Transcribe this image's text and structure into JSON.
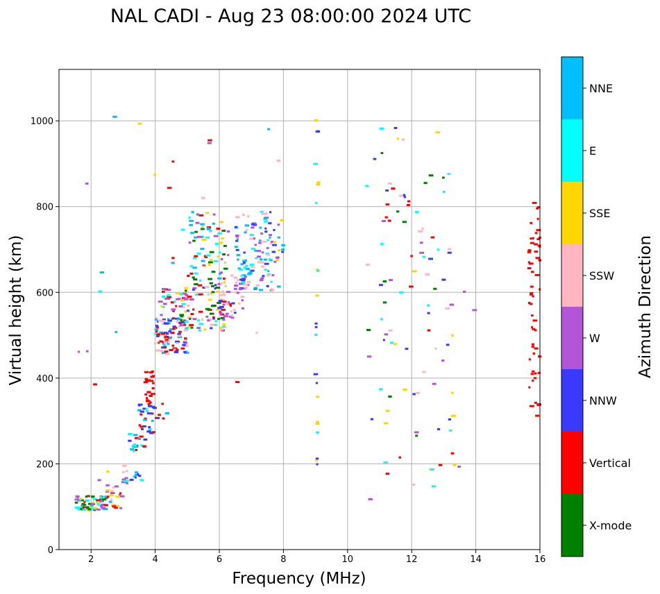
{
  "chart_data": {
    "type": "scatter",
    "title": "NAL CADI - Aug 23 08:00:00 2024 UTC",
    "xlabel": "Frequency (MHz)",
    "ylabel": "Virtual height (km)",
    "xlim": [
      1,
      16
    ],
    "ylim": [
      0,
      1120
    ],
    "xticks": [
      "2",
      "4",
      "6",
      "8",
      "10",
      "12",
      "14",
      "16"
    ],
    "yticks": [
      "0",
      "200",
      "400",
      "600",
      "800",
      "1000"
    ],
    "grid": true,
    "colorbar": {
      "label": "Azimuth Direction",
      "categories": [
        {
          "name": "X-mode",
          "color": "#008000"
        },
        {
          "name": "Vertical",
          "color": "#ff0000"
        },
        {
          "name": "NNW",
          "color": "#3a3aff"
        },
        {
          "name": "W",
          "color": "#b455d8"
        },
        {
          "name": "SSW",
          "color": "#ffb6c1"
        },
        {
          "name": "SSE",
          "color": "#ffd700"
        },
        {
          "name": "E",
          "color": "#00ffff"
        },
        {
          "name": "NNE",
          "color": "#00bfff"
        }
      ]
    },
    "clusters": [
      {
        "x": [
          1.5,
          2.5
        ],
        "y": [
          90,
          125
        ],
        "n": 70,
        "colors": [
          "Vertical",
          "E",
          "SSE",
          "W",
          "NNE",
          "X-mode"
        ]
      },
      {
        "x": [
          2.5,
          3.0
        ],
        "y": [
          95,
          150
        ],
        "n": 20,
        "colors": [
          "SSW",
          "W",
          "Vertical",
          "SSE"
        ]
      },
      {
        "x": [
          3.0,
          3.2
        ],
        "y": [
          140,
          215
        ],
        "n": 10,
        "colors": [
          "SSE",
          "E",
          "W",
          "SSW"
        ]
      },
      {
        "x": [
          3.2,
          3.6
        ],
        "y": [
          160,
          180
        ],
        "n": 8,
        "colors": [
          "NNW",
          "E",
          "NNE"
        ]
      },
      {
        "x": [
          3.2,
          3.7
        ],
        "y": [
          230,
          270
        ],
        "n": 20,
        "colors": [
          "NNE",
          "NNW",
          "Vertical",
          "E"
        ]
      },
      {
        "x": [
          3.5,
          4.0
        ],
        "y": [
          270,
          340
        ],
        "n": 28,
        "colors": [
          "Vertical",
          "NNE",
          "NNW",
          "E"
        ]
      },
      {
        "x": [
          3.7,
          3.95
        ],
        "y": [
          340,
          420
        ],
        "n": 22,
        "colors": [
          "Vertical"
        ]
      },
      {
        "x": [
          3.9,
          4.4
        ],
        "y": [
          300,
          345
        ],
        "n": 8,
        "colors": [
          "NNW",
          "NNE",
          "Vertical"
        ]
      },
      {
        "x": [
          4.0,
          5.0
        ],
        "y": [
          455,
          540
        ],
        "n": 95,
        "colors": [
          "Vertical",
          "NNW",
          "NNE",
          "SSW"
        ]
      },
      {
        "x": [
          4.0,
          5.0
        ],
        "y": [
          540,
          610
        ],
        "n": 30,
        "colors": [
          "Vertical",
          "SSE",
          "E",
          "W"
        ]
      },
      {
        "x": [
          4.8,
          6.2
        ],
        "y": [
          510,
          620
        ],
        "n": 85,
        "colors": [
          "X-mode",
          "Vertical",
          "W",
          "E",
          "NNW",
          "SSW",
          "SSE"
        ]
      },
      {
        "x": [
          5.0,
          6.3
        ],
        "y": [
          620,
          790
        ],
        "n": 75,
        "colors": [
          "X-mode",
          "Vertical",
          "E",
          "NNE",
          "SSE",
          "W"
        ]
      },
      {
        "x": [
          6.0,
          6.8
        ],
        "y": [
          540,
          650
        ],
        "n": 45,
        "colors": [
          "W",
          "SSW",
          "Vertical",
          "NNW"
        ]
      },
      {
        "x": [
          6.5,
          7.7
        ],
        "y": [
          600,
          790
        ],
        "n": 110,
        "colors": [
          "W",
          "NNW",
          "NNE",
          "E",
          "SSW"
        ]
      },
      {
        "x": [
          7.7,
          8.0
        ],
        "y": [
          650,
          790
        ],
        "n": 14,
        "colors": [
          "NNW",
          "NNE",
          "W",
          "SSE"
        ]
      },
      {
        "x": [
          9.0,
          9.1
        ],
        "y": [
          150,
          1020
        ],
        "n": 22,
        "colors": [
          "SSE",
          "E",
          "NNW"
        ]
      },
      {
        "x": [
          10.6,
          13.3
        ],
        "y": [
          90,
          1010
        ],
        "n": 95,
        "colors": [
          "W",
          "SSE",
          "SSW",
          "NNW",
          "Vertical",
          "E",
          "X-mode"
        ]
      },
      {
        "x": [
          13.3,
          14.0
        ],
        "y": [
          160,
          670
        ],
        "n": 5,
        "colors": [
          "W",
          "SSE"
        ]
      },
      {
        "x": [
          15.65,
          16.0
        ],
        "y": [
          310,
          820
        ],
        "n": 55,
        "colors": [
          "Vertical"
        ]
      },
      {
        "x": [
          1.6,
          8.0
        ],
        "y": [
          60,
          1010
        ],
        "n": 30,
        "colors": [
          "NNE",
          "SSE",
          "Vertical",
          "W",
          "E",
          "SSW"
        ]
      }
    ]
  }
}
